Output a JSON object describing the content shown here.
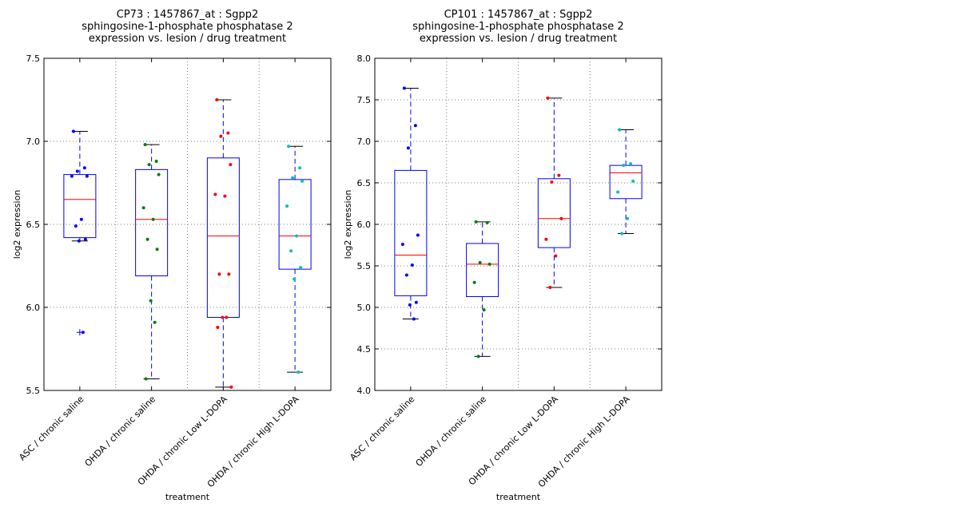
{
  "chart_data": [
    {
      "type": "box",
      "title_lines": [
        "CP73 : 1457867_at : Sgpp2",
        "sphingosine-1-phosphate phosphatase 2",
        "expression vs. lesion / drug treatment"
      ],
      "xlabel": "treatment",
      "ylabel": "log2 expression",
      "ylim": [
        5.5,
        7.5
      ],
      "yticks": [
        "5.5",
        "6.0",
        "6.5",
        "7.0",
        "7.5"
      ],
      "grid": true,
      "categories": [
        "ASC / chronic saline",
        "OHDA / chronic saline",
        "OHDA / chronic Low L-DOPA",
        "OHDA / chronic High L-DOPA"
      ],
      "boxes": [
        {
          "q1": 6.42,
          "median": 6.65,
          "q3": 6.8,
          "whisker_low": 6.4,
          "whisker_high": 7.06,
          "outliers": [
            5.85
          ]
        },
        {
          "q1": 6.19,
          "median": 6.53,
          "q3": 6.83,
          "whisker_low": 5.57,
          "whisker_high": 6.98,
          "outliers": []
        },
        {
          "q1": 5.94,
          "median": 6.43,
          "q3": 6.9,
          "whisker_low": 5.52,
          "whisker_high": 7.25,
          "outliers": []
        },
        {
          "q1": 6.23,
          "median": 6.43,
          "q3": 6.77,
          "whisker_low": 5.61,
          "whisker_high": 6.97,
          "outliers": []
        }
      ],
      "points": [
        [
          7.06,
          6.84,
          6.82,
          6.79,
          6.79,
          6.53,
          6.49,
          6.41,
          6.4,
          5.85
        ],
        [
          6.98,
          6.88,
          6.86,
          6.8,
          6.6,
          6.53,
          6.41,
          6.35,
          6.04,
          5.91,
          5.57
        ],
        [
          7.25,
          7.05,
          7.03,
          6.86,
          6.68,
          6.67,
          6.2,
          6.2,
          5.94,
          5.94,
          5.88,
          5.52
        ],
        [
          6.97,
          6.84,
          6.78,
          6.76,
          6.61,
          6.43,
          6.34,
          6.24,
          6.17,
          5.61
        ]
      ]
    },
    {
      "type": "box",
      "title_lines": [
        "CP101 : 1457867_at : Sgpp2",
        "sphingosine-1-phosphate phosphatase 2",
        "expression vs. lesion / drug treatment"
      ],
      "xlabel": "treatment",
      "ylabel": "log2 expression",
      "ylim": [
        4.0,
        8.0
      ],
      "yticks": [
        "4.0",
        "4.5",
        "5.0",
        "5.5",
        "6.0",
        "6.5",
        "7.0",
        "7.5",
        "8.0"
      ],
      "grid": true,
      "categories": [
        "ASC / chronic saline",
        "OHDA / chronic saline",
        "OHDA / chronic Low L-DOPA",
        "OHDA / chronic High L-DOPA"
      ],
      "boxes": [
        {
          "q1": 5.14,
          "median": 5.63,
          "q3": 6.65,
          "whisker_low": 4.86,
          "whisker_high": 7.64,
          "outliers": []
        },
        {
          "q1": 5.13,
          "median": 5.52,
          "q3": 5.77,
          "whisker_low": 4.41,
          "whisker_high": 6.03,
          "outliers": []
        },
        {
          "q1": 5.72,
          "median": 6.07,
          "q3": 6.55,
          "whisker_low": 5.24,
          "whisker_high": 7.52,
          "outliers": []
        },
        {
          "q1": 6.31,
          "median": 6.62,
          "q3": 6.71,
          "whisker_low": 5.89,
          "whisker_high": 7.14,
          "outliers": []
        }
      ],
      "points": [
        [
          7.64,
          7.19,
          6.92,
          5.87,
          5.76,
          5.51,
          5.39,
          5.06,
          5.03,
          4.86
        ],
        [
          6.03,
          6.02,
          5.54,
          5.52,
          5.3,
          4.97,
          4.41
        ],
        [
          7.52,
          6.59,
          6.51,
          6.07,
          5.82,
          5.62,
          5.24
        ],
        [
          7.14,
          6.73,
          6.71,
          6.52,
          6.39,
          6.07,
          5.89
        ]
      ]
    }
  ],
  "colors": {
    "box": "#0000ff",
    "median": "#ff0000",
    "whisker_cap": "#000000",
    "grid": "#7f7f7f",
    "points": [
      "#0000ff",
      "#008000",
      "#ff0000",
      "#00bfbf"
    ]
  }
}
